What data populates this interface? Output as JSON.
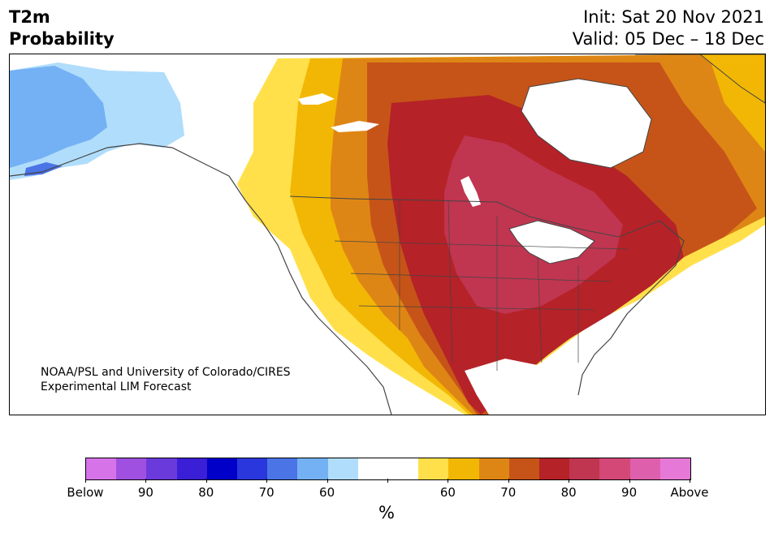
{
  "header": {
    "title_line1": "T2m",
    "title_line2": "Probability",
    "init": "Init: Sat 20 Nov 2021",
    "valid": "Valid: 05 Dec – 18 Dec"
  },
  "map": {
    "credit_line1": "NOAA/PSL and University of Colorado/CIRES",
    "credit_line2": "Experimental LIM Forecast",
    "region": "North America"
  },
  "colorbar": {
    "unit": "%",
    "colors": [
      "#d673e8",
      "#a050e0",
      "#6a3adb",
      "#3a1fd6",
      "#0000c8",
      "#2a37dc",
      "#4b74e6",
      "#74b1f4",
      "#b0ddfb",
      "#ffffff",
      "#ffffff",
      "#ffe04a",
      "#f2b705",
      "#de8615",
      "#c65418",
      "#b52228",
      "#c03550",
      "#d44878",
      "#de60ac",
      "#e678d8"
    ],
    "tick_labels": [
      "Below",
      "90",
      "80",
      "70",
      "60",
      "",
      "60",
      "70",
      "80",
      "90",
      "Above"
    ]
  }
}
